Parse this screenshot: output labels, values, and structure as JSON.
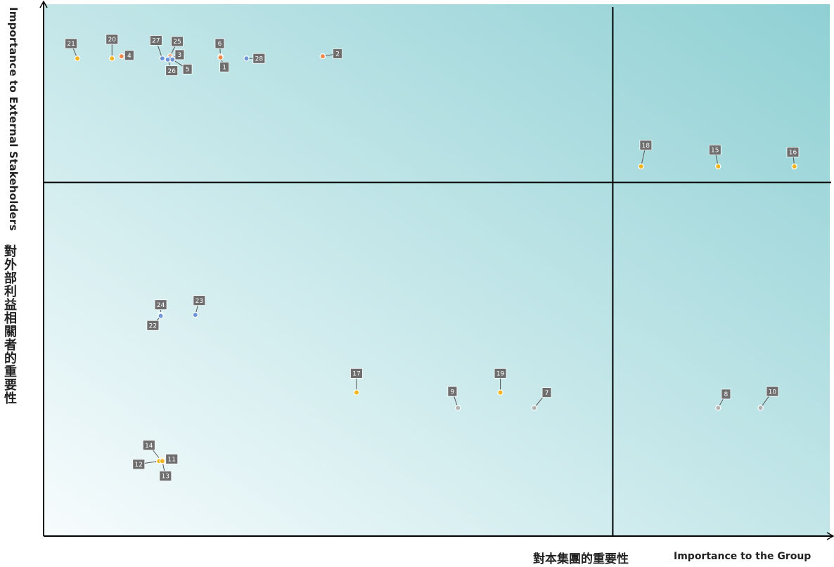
{
  "chart_data": {
    "type": "scatter",
    "title": "",
    "xlabel_zh": "對本集團的重要性",
    "xlabel_en": "Importance to the Group",
    "ylabel_zh": "對外部利益相關者的重要性",
    "ylabel_en": "Importance to External Stakeholders",
    "xlim": [
      0,
      100
    ],
    "ylim": [
      0,
      100
    ],
    "dividers": {
      "x": 72.4,
      "y": 66.5
    },
    "grid": false,
    "colors": {
      "yellow": "#f2b51f",
      "orange": "#ee8a4e",
      "blue": "#6f96d8",
      "gray": "#b3b3b3",
      "label_bg": "#6e6e6e",
      "bg_light": "#f7fcfd",
      "bg_dark": "#8fd0d4"
    },
    "points": [
      {
        "id": "21",
        "x": 4.3,
        "y": 89.8,
        "color": "yellow",
        "lx": 3.5,
        "ly": 92.6
      },
      {
        "id": "20",
        "x": 8.7,
        "y": 89.8,
        "color": "yellow",
        "lx": 8.7,
        "ly": 93.4
      },
      {
        "id": "4",
        "x": 9.9,
        "y": 90.2,
        "color": "orange",
        "lx": 10.9,
        "ly": 90.4
      },
      {
        "id": "27",
        "x": 15.1,
        "y": 89.8,
        "color": "blue",
        "lx": 14.3,
        "ly": 93.2
      },
      {
        "id": "25",
        "x": 16.1,
        "y": 90.2,
        "color": "orange",
        "lx": 17.0,
        "ly": 93.0
      },
      {
        "id": "3",
        "x": 16.1,
        "y": 89.8,
        "color": "blue",
        "lx": 17.3,
        "ly": 90.5
      },
      {
        "id": "26",
        "x": 15.8,
        "y": 89.6,
        "color": "blue",
        "lx": 16.3,
        "ly": 87.5
      },
      {
        "id": "5",
        "x": 16.4,
        "y": 89.6,
        "color": "blue",
        "lx": 18.3,
        "ly": 87.8
      },
      {
        "id": "6",
        "x": 22.5,
        "y": 90.2,
        "color": "orange",
        "lx": 22.4,
        "ly": 92.6
      },
      {
        "id": "1",
        "x": 22.5,
        "y": 90.0,
        "color": "orange",
        "lx": 23.0,
        "ly": 88.2
      },
      {
        "id": "28",
        "x": 25.8,
        "y": 89.8,
        "color": "blue",
        "lx": 27.4,
        "ly": 89.8
      },
      {
        "id": "2",
        "x": 35.5,
        "y": 90.2,
        "color": "orange",
        "lx": 37.4,
        "ly": 90.7
      },
      {
        "id": "18",
        "x": 76.0,
        "y": 69.5,
        "color": "yellow",
        "lx": 76.6,
        "ly": 73.5
      },
      {
        "id": "15",
        "x": 85.8,
        "y": 69.5,
        "color": "yellow",
        "lx": 85.4,
        "ly": 72.6
      },
      {
        "id": "16",
        "x": 95.5,
        "y": 69.5,
        "color": "yellow",
        "lx": 95.3,
        "ly": 72.2
      },
      {
        "id": "24",
        "x": 14.9,
        "y": 41.6,
        "color": "blue",
        "lx": 14.9,
        "ly": 43.5
      },
      {
        "id": "22",
        "x": 14.9,
        "y": 41.4,
        "color": "blue",
        "lx": 13.9,
        "ly": 39.6
      },
      {
        "id": "23",
        "x": 19.3,
        "y": 41.6,
        "color": "blue",
        "lx": 19.8,
        "ly": 44.3
      },
      {
        "id": "17",
        "x": 39.8,
        "y": 27.0,
        "color": "yellow",
        "lx": 39.8,
        "ly": 30.6
      },
      {
        "id": "19",
        "x": 58.1,
        "y": 27.0,
        "color": "yellow",
        "lx": 58.1,
        "ly": 30.6
      },
      {
        "id": "9",
        "x": 52.7,
        "y": 24.1,
        "color": "gray",
        "lx": 52.0,
        "ly": 27.2
      },
      {
        "id": "7",
        "x": 62.4,
        "y": 24.1,
        "color": "gray",
        "lx": 64.0,
        "ly": 27.0
      },
      {
        "id": "8",
        "x": 85.8,
        "y": 24.1,
        "color": "gray",
        "lx": 86.8,
        "ly": 26.7
      },
      {
        "id": "10",
        "x": 91.2,
        "y": 24.1,
        "color": "gray",
        "lx": 92.7,
        "ly": 27.2
      },
      {
        "id": "14",
        "x": 14.9,
        "y": 14.3,
        "color": "yellow",
        "lx": 13.4,
        "ly": 17.1
      },
      {
        "id": "11",
        "x": 15.1,
        "y": 14.3,
        "color": "yellow",
        "lx": 16.3,
        "ly": 14.5
      },
      {
        "id": "12",
        "x": 14.7,
        "y": 14.1,
        "color": "yellow",
        "lx": 12.1,
        "ly": 13.5
      },
      {
        "id": "13",
        "x": 15.1,
        "y": 14.1,
        "color": "yellow",
        "lx": 15.5,
        "ly": 11.3
      }
    ]
  }
}
